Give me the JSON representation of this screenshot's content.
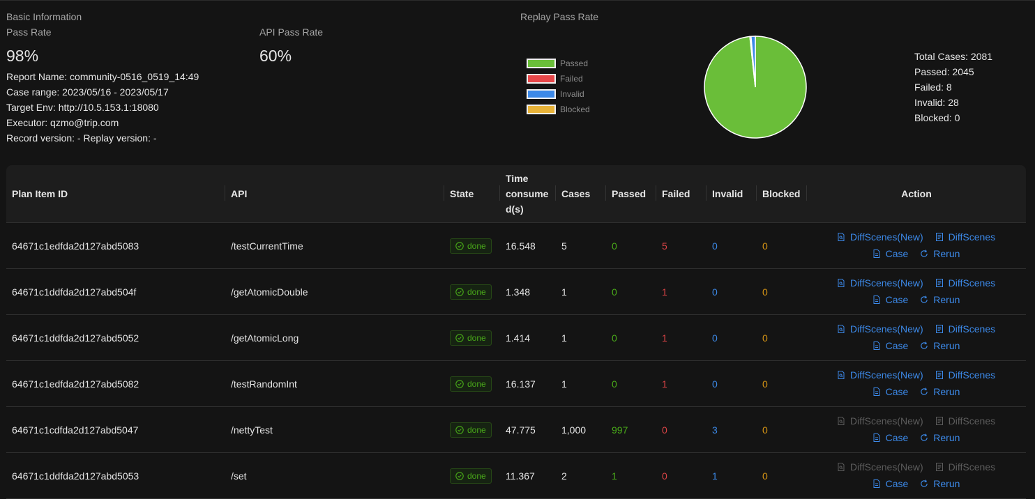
{
  "basic": {
    "section_title": "Basic Information",
    "pass_rate_label": "Pass Rate",
    "pass_rate_value": "98%",
    "api_pass_rate_label": "API Pass Rate",
    "api_pass_rate_value": "60%",
    "report_name": "Report Name: community-0516_0519_14:49",
    "case_range": "Case range: 2023/05/16 - 2023/05/17",
    "target_env": "Target Env: http://10.5.153.1:18080",
    "executor": "Executor: qzmo@trip.com",
    "record_version": "Record version: - Replay version: -"
  },
  "replay": {
    "title": "Replay Pass Rate",
    "legend": [
      {
        "label": "Passed",
        "color": "#6abe39"
      },
      {
        "label": "Failed",
        "color": "#e84749"
      },
      {
        "label": "Invalid",
        "color": "#3c89e8"
      },
      {
        "label": "Blocked",
        "color": "#e8b339"
      }
    ],
    "stats": {
      "total": "Total Cases: 2081",
      "passed": "Passed: 2045",
      "failed": "Failed: 8",
      "invalid": "Invalid: 28",
      "blocked": "Blocked: 0"
    }
  },
  "chart_data": {
    "type": "pie",
    "categories": [
      "Passed",
      "Failed",
      "Invalid",
      "Blocked"
    ],
    "values": [
      2045,
      8,
      28,
      0
    ],
    "colors": [
      "#6abe39",
      "#e84749",
      "#3c89e8",
      "#e8b339"
    ]
  },
  "table": {
    "headers": {
      "plan_item_id": "Plan Item ID",
      "api": "API",
      "state": "State",
      "time_line1": "Time",
      "time_line2": "consume",
      "time_line3": "d(s)",
      "cases": "Cases",
      "passed": "Passed",
      "failed": "Failed",
      "invalid": "Invalid",
      "blocked": "Blocked",
      "action": "Action"
    },
    "action_labels": {
      "diff_new": "DiffScenes(New)",
      "diff": "DiffScenes",
      "case": "Case",
      "rerun": "Rerun"
    },
    "rows": [
      {
        "id": "64671c1edfda2d127abd5083",
        "api": "/testCurrentTime",
        "state": "done",
        "time": "16.548",
        "cases": "5",
        "passed": "0",
        "failed": "5",
        "invalid": "0",
        "blocked": "0",
        "diff_disabled": false
      },
      {
        "id": "64671c1ddfda2d127abd504f",
        "api": "/getAtomicDouble",
        "state": "done",
        "time": "1.348",
        "cases": "1",
        "passed": "0",
        "failed": "1",
        "invalid": "0",
        "blocked": "0",
        "diff_disabled": false
      },
      {
        "id": "64671c1ddfda2d127abd5052",
        "api": "/getAtomicLong",
        "state": "done",
        "time": "1.414",
        "cases": "1",
        "passed": "0",
        "failed": "1",
        "invalid": "0",
        "blocked": "0",
        "diff_disabled": false
      },
      {
        "id": "64671c1edfda2d127abd5082",
        "api": "/testRandomInt",
        "state": "done",
        "time": "16.137",
        "cases": "1",
        "passed": "0",
        "failed": "1",
        "invalid": "0",
        "blocked": "0",
        "diff_disabled": false
      },
      {
        "id": "64671c1cdfda2d127abd5047",
        "api": "/nettyTest",
        "state": "done",
        "time": "47.775",
        "cases": "1,000",
        "passed": "997",
        "failed": "0",
        "invalid": "3",
        "blocked": "0",
        "diff_disabled": true
      },
      {
        "id": "64671c1ddfda2d127abd5053",
        "api": "/set",
        "state": "done",
        "time": "11.367",
        "cases": "2",
        "passed": "1",
        "failed": "0",
        "invalid": "1",
        "blocked": "0",
        "diff_disabled": true
      }
    ]
  }
}
